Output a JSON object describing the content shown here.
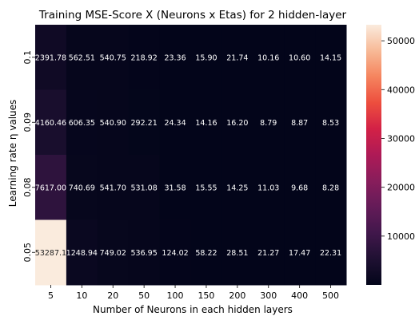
{
  "chart_data": {
    "type": "heatmap",
    "title": "Training MSE-Score X (Neurons x Etas) for 2 hidden-layer",
    "xlabel": "Number of Neurons in each hidden layers",
    "ylabel": "Learning rate η values",
    "x_categories": [
      "5",
      "10",
      "20",
      "50",
      "100",
      "150",
      "200",
      "300",
      "400",
      "500"
    ],
    "y_categories": [
      "0.1",
      "0.09",
      "0.08",
      "0.05"
    ],
    "values": [
      [
        2391.78,
        562.51,
        540.75,
        218.92,
        23.36,
        15.9,
        21.74,
        10.16,
        10.6,
        14.15
      ],
      [
        4160.46,
        606.35,
        540.9,
        292.21,
        24.34,
        14.16,
        16.2,
        8.79,
        8.87,
        8.53
      ],
      [
        7617.0,
        740.69,
        541.7,
        531.08,
        31.58,
        15.55,
        14.25,
        11.03,
        9.68,
        8.28
      ],
      [
        53287.1,
        1248.94,
        749.02,
        536.95,
        124.02,
        58.22,
        28.51,
        21.27,
        17.47,
        22.31
      ]
    ],
    "cell_labels": [
      [
        "2391.78",
        "562.51",
        "540.75",
        "218.92",
        "23.36",
        "15.90",
        "21.74",
        "10.16",
        "10.60",
        "14.15"
      ],
      [
        "4160.46",
        "606.35",
        "540.90",
        "292.21",
        "24.34",
        "14.16",
        "16.20",
        "8.79",
        "8.87",
        "8.53"
      ],
      [
        "7617.00",
        "740.69",
        "541.70",
        "531.08",
        "31.58",
        "15.55",
        "14.25",
        "11.03",
        "9.68",
        "8.28"
      ],
      [
        "53287.1",
        "1248.94",
        "749.02",
        "536.95",
        "124.02",
        "58.22",
        "28.51",
        "21.27",
        "17.47",
        "22.31"
      ]
    ],
    "colorbar": {
      "colormap": "rocket",
      "range": [
        8.28,
        53287.1
      ],
      "ticks": [
        "10000",
        "20000",
        "30000",
        "40000",
        "50000"
      ]
    }
  }
}
